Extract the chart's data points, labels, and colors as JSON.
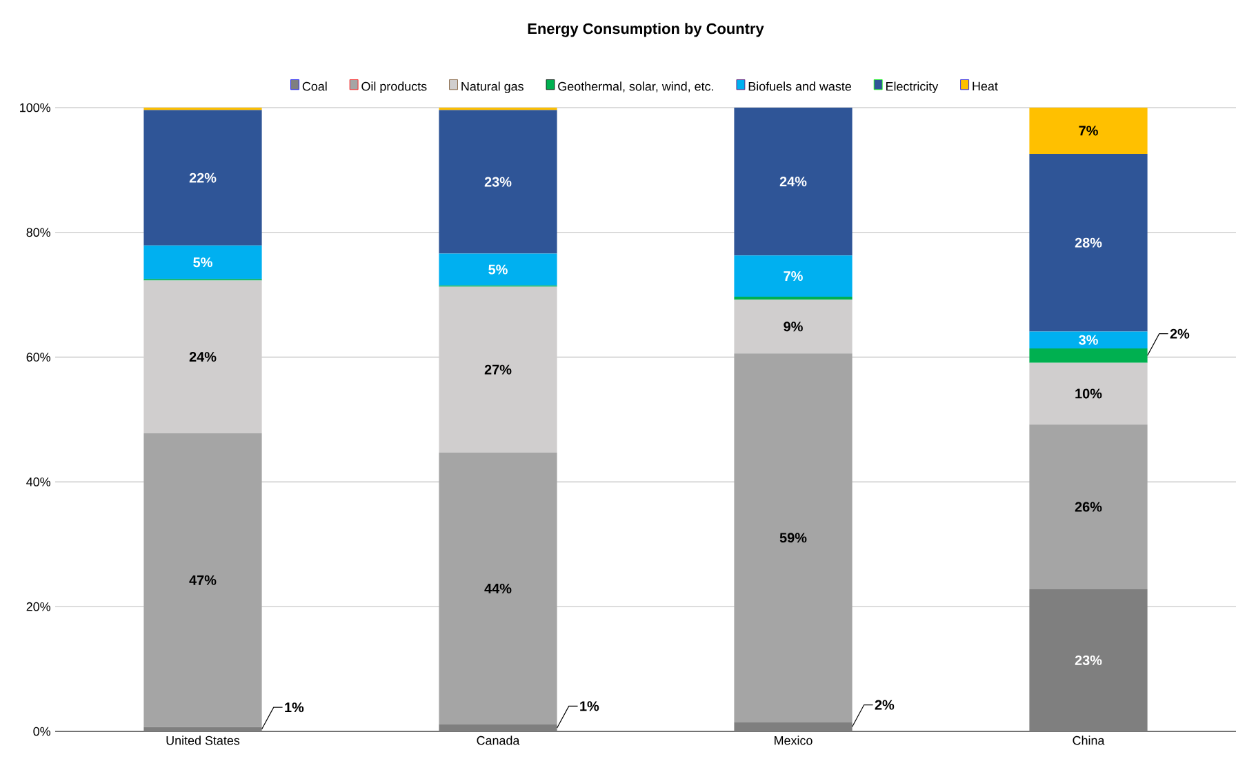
{
  "chart_data": {
    "type": "bar",
    "stacked": true,
    "title": "Energy Consumption by Country",
    "categories": [
      "United States",
      "Canada",
      "Mexico",
      "China"
    ],
    "series": [
      {
        "name": "Coal",
        "color": "#7f7f7f",
        "values": [
          0.7,
          1.1,
          1.5,
          22.8
        ],
        "value_labels": [
          "1%",
          "1%",
          "2%",
          "23%"
        ]
      },
      {
        "name": "Oil products",
        "color": "#a5a5a5",
        "values": [
          47.1,
          43.6,
          59.1,
          26.4
        ],
        "value_labels": [
          "47%",
          "44%",
          "59%",
          "26%"
        ]
      },
      {
        "name": "Natural gas",
        "color": "#d0cece",
        "values": [
          24.5,
          26.6,
          8.6,
          9.9
        ],
        "value_labels": [
          "24%",
          "27%",
          "9%",
          "10%"
        ]
      },
      {
        "name": "Geothermal, solar, wind, etc.",
        "color": "#00b050",
        "values": [
          0.2,
          0.2,
          0.5,
          2.3
        ],
        "value_labels": [
          null,
          null,
          null,
          "2%"
        ]
      },
      {
        "name": "Biofuels and waste",
        "color": "#00b0f0",
        "values": [
          5.4,
          5.1,
          6.6,
          2.7
        ],
        "value_labels": [
          "5%",
          "5%",
          "7%",
          "3%"
        ]
      },
      {
        "name": "Electricity",
        "color": "#2f5597",
        "values": [
          21.7,
          23.0,
          23.7,
          28.5
        ],
        "value_labels": [
          "22%",
          "23%",
          "24%",
          "28%"
        ]
      },
      {
        "name": "Heat",
        "color": "#ffc000",
        "values": [
          0.4,
          0.4,
          0.0,
          7.4
        ],
        "value_labels": [
          null,
          null,
          null,
          "7%"
        ]
      }
    ],
    "ylim": [
      0,
      100
    ],
    "yticks": [
      {
        "value": 0,
        "label": "0%"
      },
      {
        "value": 20,
        "label": "20%"
      },
      {
        "value": 40,
        "label": "40%"
      },
      {
        "value": 60,
        "label": "60%"
      },
      {
        "value": 80,
        "label": "80%"
      },
      {
        "value": 100,
        "label": "100%"
      }
    ],
    "grid": "y",
    "legend": "top"
  }
}
